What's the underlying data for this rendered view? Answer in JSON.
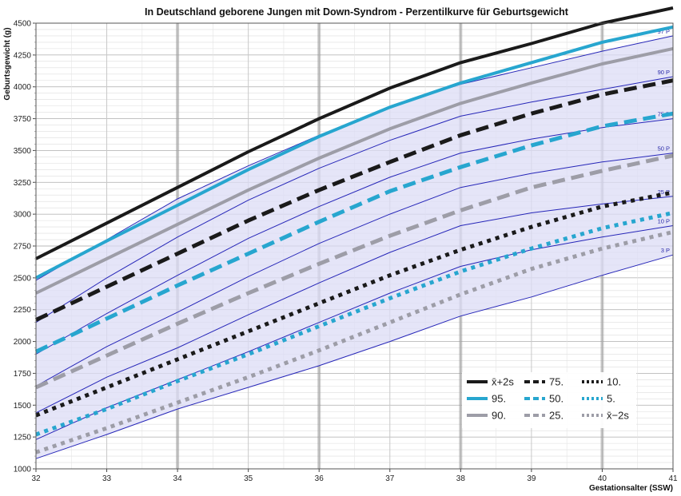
{
  "chart_data": {
    "type": "line",
    "title": "In Deutschland geborene Jungen mit Down-Syndrom - Perzentilkurve für Geburtsgewicht",
    "xlabel": "Gestationsalter (SSW)",
    "ylabel": "Geburtsgewicht (g)",
    "xlim": [
      32,
      41
    ],
    "ylim": [
      1000,
      4500
    ],
    "x_ticks": [
      32,
      33,
      34,
      35,
      36,
      37,
      38,
      39,
      40,
      41
    ],
    "y_ticks": [
      1000,
      1250,
      1500,
      1750,
      2000,
      2250,
      2500,
      2750,
      3000,
      3250,
      3500,
      3750,
      4000,
      4250,
      4500
    ],
    "grid": true,
    "legend_position": "bottom-right",
    "reference_lines": {
      "style": "thin blue, shaded band between 3 P and 97 P",
      "color": "#2626b8",
      "band_fill": "#dcdcf5",
      "lines": [
        {
          "label": "97 P",
          "x": [
            32,
            33,
            34,
            35,
            36,
            37,
            38,
            39,
            40,
            41
          ],
          "y": [
            2480,
            2800,
            3120,
            3380,
            3620,
            3840,
            4020,
            4150,
            4280,
            4400
          ]
        },
        {
          "label": "90 P",
          "x": [
            32,
            33,
            34,
            35,
            36,
            37,
            38,
            39,
            40,
            41
          ],
          "y": [
            2150,
            2500,
            2820,
            3110,
            3360,
            3580,
            3770,
            3880,
            3980,
            4080
          ]
        },
        {
          "label": "75 P",
          "x": [
            32,
            33,
            34,
            35,
            36,
            37,
            38,
            39,
            40,
            41
          ],
          "y": [
            1900,
            2220,
            2520,
            2810,
            3060,
            3290,
            3480,
            3590,
            3680,
            3750
          ]
        },
        {
          "label": "50 P",
          "x": [
            32,
            33,
            34,
            35,
            36,
            37,
            38,
            39,
            40,
            41
          ],
          "y": [
            1650,
            1960,
            2230,
            2510,
            2770,
            3000,
            3210,
            3320,
            3410,
            3480
          ]
        },
        {
          "label": "25 P",
          "x": [
            32,
            33,
            34,
            35,
            36,
            37,
            38,
            39,
            40,
            41
          ],
          "y": [
            1440,
            1720,
            1950,
            2210,
            2460,
            2700,
            2910,
            3010,
            3080,
            3140
          ]
        },
        {
          "label": "10 P",
          "x": [
            32,
            33,
            34,
            35,
            36,
            37,
            38,
            39,
            40,
            41
          ],
          "y": [
            1230,
            1480,
            1700,
            1920,
            2150,
            2380,
            2590,
            2720,
            2820,
            2910
          ]
        },
        {
          "label": "3 P",
          "x": [
            32,
            33,
            34,
            35,
            36,
            37,
            38,
            39,
            40,
            41
          ],
          "y": [
            1080,
            1270,
            1470,
            1640,
            1810,
            2000,
            2200,
            2350,
            2520,
            2680
          ]
        }
      ]
    },
    "series": [
      {
        "name": "x̄+2s",
        "color": "#1a1a1a",
        "style": "solid",
        "x": [
          32,
          33,
          34,
          35,
          36,
          37,
          38,
          39,
          40,
          41
        ],
        "y": [
          2650,
          2930,
          3210,
          3490,
          3750,
          3990,
          4190,
          4340,
          4500,
          4620
        ]
      },
      {
        "name": "95.",
        "color": "#27a6cf",
        "style": "solid",
        "x": [
          32,
          33,
          34,
          35,
          36,
          37,
          38,
          39,
          40,
          41
        ],
        "y": [
          2500,
          2790,
          3070,
          3350,
          3610,
          3840,
          4030,
          4190,
          4350,
          4470
        ]
      },
      {
        "name": "90.",
        "color": "#9d9da7",
        "style": "solid",
        "x": [
          32,
          33,
          34,
          35,
          36,
          37,
          38,
          39,
          40,
          41
        ],
        "y": [
          2380,
          2650,
          2920,
          3190,
          3440,
          3670,
          3870,
          4030,
          4180,
          4300
        ]
      },
      {
        "name": "75.",
        "color": "#1a1a1a",
        "style": "dashed",
        "x": [
          32,
          33,
          34,
          35,
          36,
          37,
          38,
          39,
          40,
          41
        ],
        "y": [
          2170,
          2430,
          2690,
          2950,
          3190,
          3410,
          3620,
          3790,
          3940,
          4050
        ]
      },
      {
        "name": "50.",
        "color": "#27a6cf",
        "style": "dashed",
        "x": [
          32,
          33,
          34,
          35,
          36,
          37,
          38,
          39,
          40,
          41
        ],
        "y": [
          1920,
          2180,
          2440,
          2690,
          2940,
          3180,
          3370,
          3540,
          3690,
          3790
        ]
      },
      {
        "name": "25.",
        "color": "#9d9da7",
        "style": "dashed",
        "x": [
          32,
          33,
          34,
          35,
          36,
          37,
          38,
          39,
          40,
          41
        ],
        "y": [
          1640,
          1890,
          2140,
          2380,
          2610,
          2830,
          3030,
          3210,
          3340,
          3460
        ]
      },
      {
        "name": "10.",
        "color": "#1a1a1a",
        "style": "dotted",
        "x": [
          32,
          33,
          34,
          35,
          36,
          37,
          38,
          39,
          40,
          41
        ],
        "y": [
          1420,
          1640,
          1860,
          2080,
          2300,
          2520,
          2720,
          2900,
          3060,
          3170
        ]
      },
      {
        "name": "5.",
        "color": "#27a6cf",
        "style": "dotted",
        "x": [
          32,
          33,
          34,
          35,
          36,
          37,
          38,
          39,
          40,
          41
        ],
        "y": [
          1270,
          1470,
          1690,
          1900,
          2120,
          2340,
          2550,
          2730,
          2890,
          3010
        ]
      },
      {
        "name": "x̄−2s",
        "color": "#9d9da7",
        "style": "dotted",
        "x": [
          32,
          33,
          34,
          35,
          36,
          37,
          38,
          39,
          40,
          41
        ],
        "y": [
          1130,
          1320,
          1520,
          1720,
          1930,
          2150,
          2370,
          2570,
          2730,
          2860
        ]
      }
    ],
    "legend": {
      "columns": [
        [
          "x̄+2s",
          "95.",
          "90."
        ],
        [
          "75.",
          "50.",
          "25."
        ],
        [
          "10.",
          "5.",
          "x̄−2s"
        ]
      ]
    }
  }
}
